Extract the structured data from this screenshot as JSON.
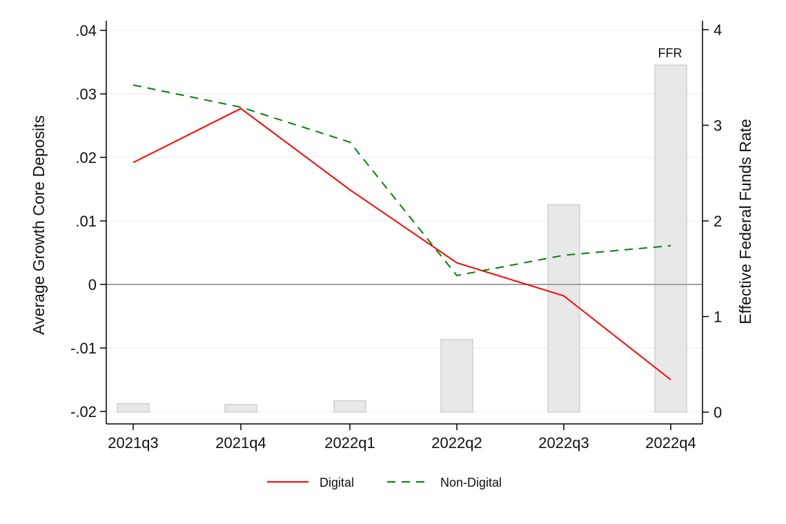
{
  "chart_data": {
    "type": "line+bar",
    "title": "",
    "categories": [
      "2021q3",
      "2021q4",
      "2022q1",
      "2022q2",
      "2022q3",
      "2022q4"
    ],
    "series": [
      {
        "name": "Digital",
        "axis": "left",
        "type": "line",
        "style": "solid",
        "color": "#ff0000",
        "values": [
          0.0192,
          0.0277,
          0.0149,
          0.0034,
          -0.0018,
          -0.015
        ]
      },
      {
        "name": "Non-Digital",
        "axis": "left",
        "type": "line",
        "style": "dashed",
        "color": "#008000",
        "values": [
          0.0314,
          0.0279,
          0.0224,
          0.0014,
          0.0046,
          0.0061
        ]
      },
      {
        "name": "FFR",
        "axis": "right",
        "type": "bar",
        "color": "#e8e8e8",
        "edge": "#d0d0d0",
        "values": [
          0.09,
          0.08,
          0.12,
          0.76,
          2.17,
          3.63
        ]
      }
    ],
    "xlabel": "",
    "ylabel": "Average Growth Core Deposits",
    "ylabel_right": "Effective Federal Funds Rate",
    "ylim": [
      -0.02,
      0.04
    ],
    "ylim_right": [
      0,
      4
    ],
    "yticks": [
      ".04",
      ".03",
      ".02",
      ".01",
      "0",
      "-.01",
      "-.02"
    ],
    "ytick_values": [
      0.04,
      0.03,
      0.02,
      0.01,
      0,
      -0.01,
      -0.02
    ],
    "yticks_right": [
      "4",
      "3",
      "2",
      "1",
      "0"
    ],
    "ytick_right_values": [
      4,
      3,
      2,
      1,
      0
    ],
    "grid": true,
    "zero_line": true,
    "bar_annotation": {
      "label": "FFR",
      "category": "2022q4"
    },
    "legend": {
      "position": "bottom",
      "entries": [
        "Digital",
        "Non-Digital"
      ]
    }
  }
}
